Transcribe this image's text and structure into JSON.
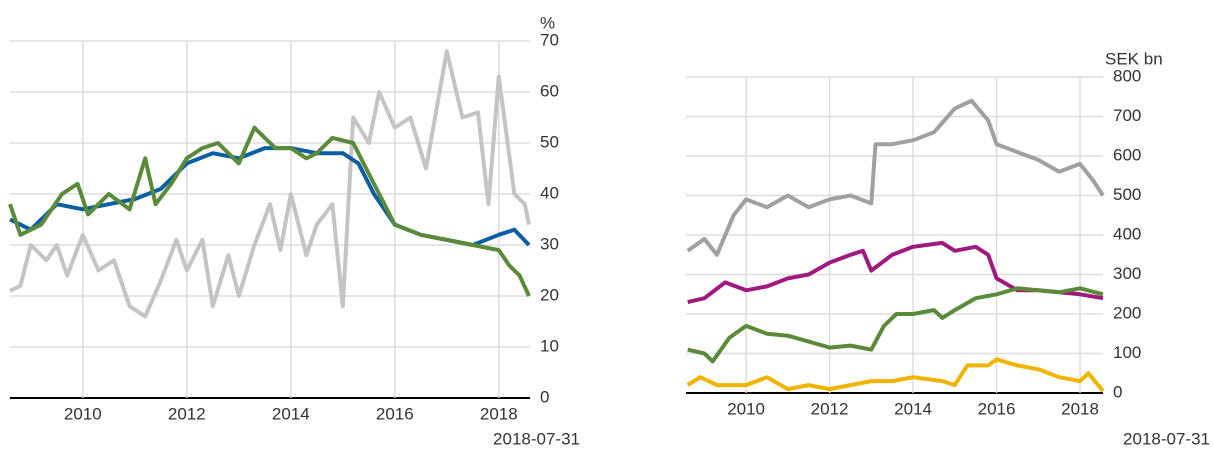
{
  "chart_data": [
    {
      "type": "line",
      "y_label": "%",
      "note": "2018-07-31",
      "xlim": [
        2008.6,
        2018.6
      ],
      "xticks": [
        2010,
        2012,
        2014,
        2016,
        2018
      ],
      "ylim": [
        0,
        70
      ],
      "yticks": [
        0,
        10,
        20,
        30,
        40,
        50,
        60,
        70
      ],
      "grid": true,
      "series": [
        {
          "color": "#c4c4c4",
          "x": [
            2008.6,
            2008.8,
            2009,
            2009.3,
            2009.5,
            2009.7,
            2010,
            2010.3,
            2010.6,
            2010.9,
            2011.2,
            2011.5,
            2011.8,
            2012,
            2012.3,
            2012.5,
            2012.8,
            2013,
            2013.3,
            2013.6,
            2013.8,
            2014,
            2014.3,
            2014.5,
            2014.8,
            2015,
            2015.2,
            2015.5,
            2015.7,
            2016,
            2016.3,
            2016.6,
            2017,
            2017.3,
            2017.6,
            2017.8,
            2018,
            2018.3,
            2018.5,
            2018.58
          ],
          "values": [
            21,
            22,
            30,
            27,
            30,
            24,
            32,
            25,
            27,
            18,
            16,
            23,
            31,
            25,
            31,
            18,
            28,
            20,
            30,
            38,
            29,
            40,
            28,
            34,
            38,
            18,
            55,
            50,
            60,
            53,
            55,
            45,
            68,
            55,
            56,
            38,
            63,
            40,
            38,
            34
          ]
        },
        {
          "color": "#0a5fa3",
          "x": [
            2008.6,
            2009,
            2009.5,
            2010,
            2010.5,
            2011,
            2011.5,
            2012,
            2012.5,
            2013,
            2013.5,
            2014,
            2014.5,
            2015,
            2015.3,
            2015.6,
            2016,
            2016.5,
            2017,
            2017.5,
            2018,
            2018.3,
            2018.58
          ],
          "values": [
            35,
            33,
            38,
            37,
            38,
            39,
            41,
            46,
            48,
            47,
            49,
            49,
            48,
            48,
            46,
            40,
            34,
            32,
            31,
            30,
            32,
            33,
            30
          ]
        },
        {
          "color": "#5a8a3a",
          "x": [
            2008.6,
            2008.8,
            2009.2,
            2009.6,
            2009.9,
            2010.1,
            2010.5,
            2010.9,
            2011.2,
            2011.4,
            2011.7,
            2012,
            2012.3,
            2012.6,
            2013,
            2013.3,
            2013.7,
            2014,
            2014.3,
            2014.5,
            2014.8,
            2015.2,
            2015.5,
            2015.8,
            2016,
            2016.5,
            2017,
            2017.5,
            2018,
            2018.2,
            2018.4,
            2018.58
          ],
          "values": [
            38,
            32,
            34,
            40,
            42,
            36,
            40,
            37,
            47,
            38,
            42,
            47,
            49,
            50,
            46,
            53,
            49,
            49,
            47,
            48,
            51,
            50,
            44,
            38,
            34,
            32,
            31,
            30,
            29,
            26,
            24,
            20
          ]
        }
      ]
    },
    {
      "type": "line",
      "y_label": "SEK bn",
      "note": "2018-07-31",
      "xlim": [
        2008.56,
        2018.55
      ],
      "xticks": [
        2010,
        2012,
        2014,
        2016,
        2018
      ],
      "ylim": [
        0,
        800
      ],
      "yticks": [
        0,
        100,
        200,
        300,
        400,
        500,
        600,
        700,
        800
      ],
      "grid": true,
      "series": [
        {
          "color": "#a0a0a0",
          "x": [
            2008.6,
            2009,
            2009.3,
            2009.7,
            2010,
            2010.5,
            2011,
            2011.5,
            2012,
            2012.5,
            2013,
            2013.1,
            2013.5,
            2014,
            2014.5,
            2015,
            2015.4,
            2015.8,
            2016,
            2016.5,
            2017,
            2017.5,
            2018,
            2018.3,
            2018.55
          ],
          "values": [
            360,
            390,
            350,
            450,
            490,
            470,
            500,
            470,
            490,
            500,
            480,
            630,
            630,
            640,
            660,
            720,
            740,
            690,
            630,
            610,
            590,
            560,
            580,
            540,
            500
          ]
        },
        {
          "color": "#a0197f",
          "x": [
            2008.6,
            2009,
            2009.5,
            2010,
            2010.5,
            2011,
            2011.5,
            2012,
            2012.5,
            2012.8,
            2013,
            2013.5,
            2014,
            2014.7,
            2015,
            2015.5,
            2015.8,
            2016,
            2016.5,
            2017,
            2017.5,
            2018,
            2018.55
          ],
          "values": [
            230,
            240,
            280,
            260,
            270,
            290,
            300,
            330,
            350,
            360,
            310,
            350,
            370,
            380,
            360,
            370,
            350,
            290,
            260,
            260,
            255,
            250,
            240
          ]
        },
        {
          "color": "#5a8a3a",
          "x": [
            2008.6,
            2009,
            2009.2,
            2009.6,
            2010,
            2010.5,
            2011,
            2011.5,
            2012,
            2012.5,
            2013,
            2013.3,
            2013.6,
            2014,
            2014.5,
            2014.7,
            2015,
            2015.5,
            2016,
            2016.5,
            2017,
            2017.5,
            2018,
            2018.55
          ],
          "values": [
            110,
            100,
            80,
            140,
            170,
            150,
            145,
            130,
            115,
            120,
            110,
            170,
            200,
            200,
            210,
            190,
            210,
            240,
            250,
            265,
            260,
            255,
            265,
            250
          ]
        },
        {
          "color": "#f0b400",
          "x": [
            2008.6,
            2008.9,
            2009.3,
            2010,
            2010.5,
            2011,
            2011.5,
            2012,
            2012.5,
            2013,
            2013.5,
            2014,
            2014.7,
            2015,
            2015.3,
            2015.8,
            2016,
            2016.5,
            2017,
            2017.5,
            2018,
            2018.2,
            2018.55
          ],
          "values": [
            20,
            40,
            20,
            20,
            40,
            10,
            20,
            10,
            20,
            30,
            30,
            40,
            30,
            20,
            70,
            70,
            85,
            70,
            60,
            40,
            30,
            50,
            5
          ]
        }
      ]
    }
  ]
}
